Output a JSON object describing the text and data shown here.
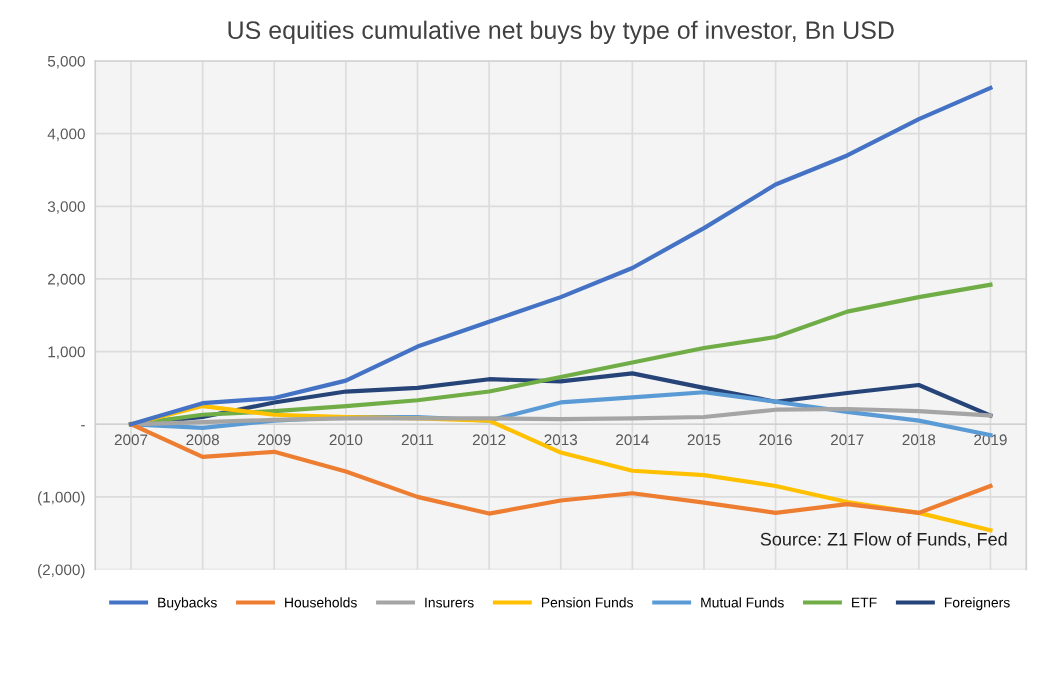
{
  "chart_data": {
    "type": "line",
    "title": "US equities cumulative net buys by type of investor, Bn USD",
    "categories": [
      "2007",
      "2008",
      "2009",
      "2010",
      "2011",
      "2012",
      "2013",
      "2014",
      "2015",
      "2016",
      "2017",
      "2018",
      "2019"
    ],
    "series": [
      {
        "name": "Buybacks",
        "color": "#4472c4",
        "values": [
          0,
          290,
          360,
          600,
          1070,
          1410,
          1750,
          2150,
          2700,
          3300,
          3700,
          4200,
          4630
        ]
      },
      {
        "name": "Households",
        "color": "#ed7d31",
        "values": [
          0,
          -450,
          -380,
          -650,
          -1000,
          -1230,
          -1050,
          -950,
          -1080,
          -1220,
          -1100,
          -1220,
          -850
        ]
      },
      {
        "name": "Insurers",
        "color": "#a5a5a5",
        "values": [
          0,
          30,
          60,
          80,
          80,
          80,
          70,
          80,
          100,
          200,
          210,
          180,
          120
        ]
      },
      {
        "name": "Pension Funds",
        "color": "#ffc000",
        "values": [
          0,
          250,
          130,
          100,
          80,
          50,
          -390,
          -640,
          -700,
          -850,
          -1070,
          -1220,
          -1460
        ]
      },
      {
        "name": "Mutual Funds",
        "color": "#5b9bd5",
        "values": [
          0,
          -50,
          50,
          100,
          100,
          50,
          300,
          370,
          440,
          310,
          170,
          50,
          -150
        ]
      },
      {
        "name": "ETF",
        "color": "#70ad47",
        "values": [
          0,
          130,
          180,
          250,
          330,
          450,
          650,
          850,
          1050,
          1200,
          1550,
          1750,
          1920
        ]
      },
      {
        "name": "Foreigners",
        "color": "#264478",
        "values": [
          0,
          100,
          300,
          450,
          500,
          620,
          590,
          700,
          500,
          310,
          430,
          540,
          120
        ]
      }
    ],
    "ylim": [
      -2000,
      5000
    ],
    "yticks": [
      {
        "value": 5000,
        "label": "5,000"
      },
      {
        "value": 4000,
        "label": "4,000"
      },
      {
        "value": 3000,
        "label": "3,000"
      },
      {
        "value": 2000,
        "label": "2,000"
      },
      {
        "value": 1000,
        "label": "1,000"
      },
      {
        "value": 0,
        "label": "-"
      },
      {
        "value": -1000,
        "label": "(1,000)"
      },
      {
        "value": -2000,
        "label": "(2,000)"
      }
    ],
    "grid": true,
    "legend": "bottom",
    "marker": "none",
    "line_style": "solid",
    "annotations": [
      "Source: Z1 Flow of Funds, Fed"
    ]
  }
}
